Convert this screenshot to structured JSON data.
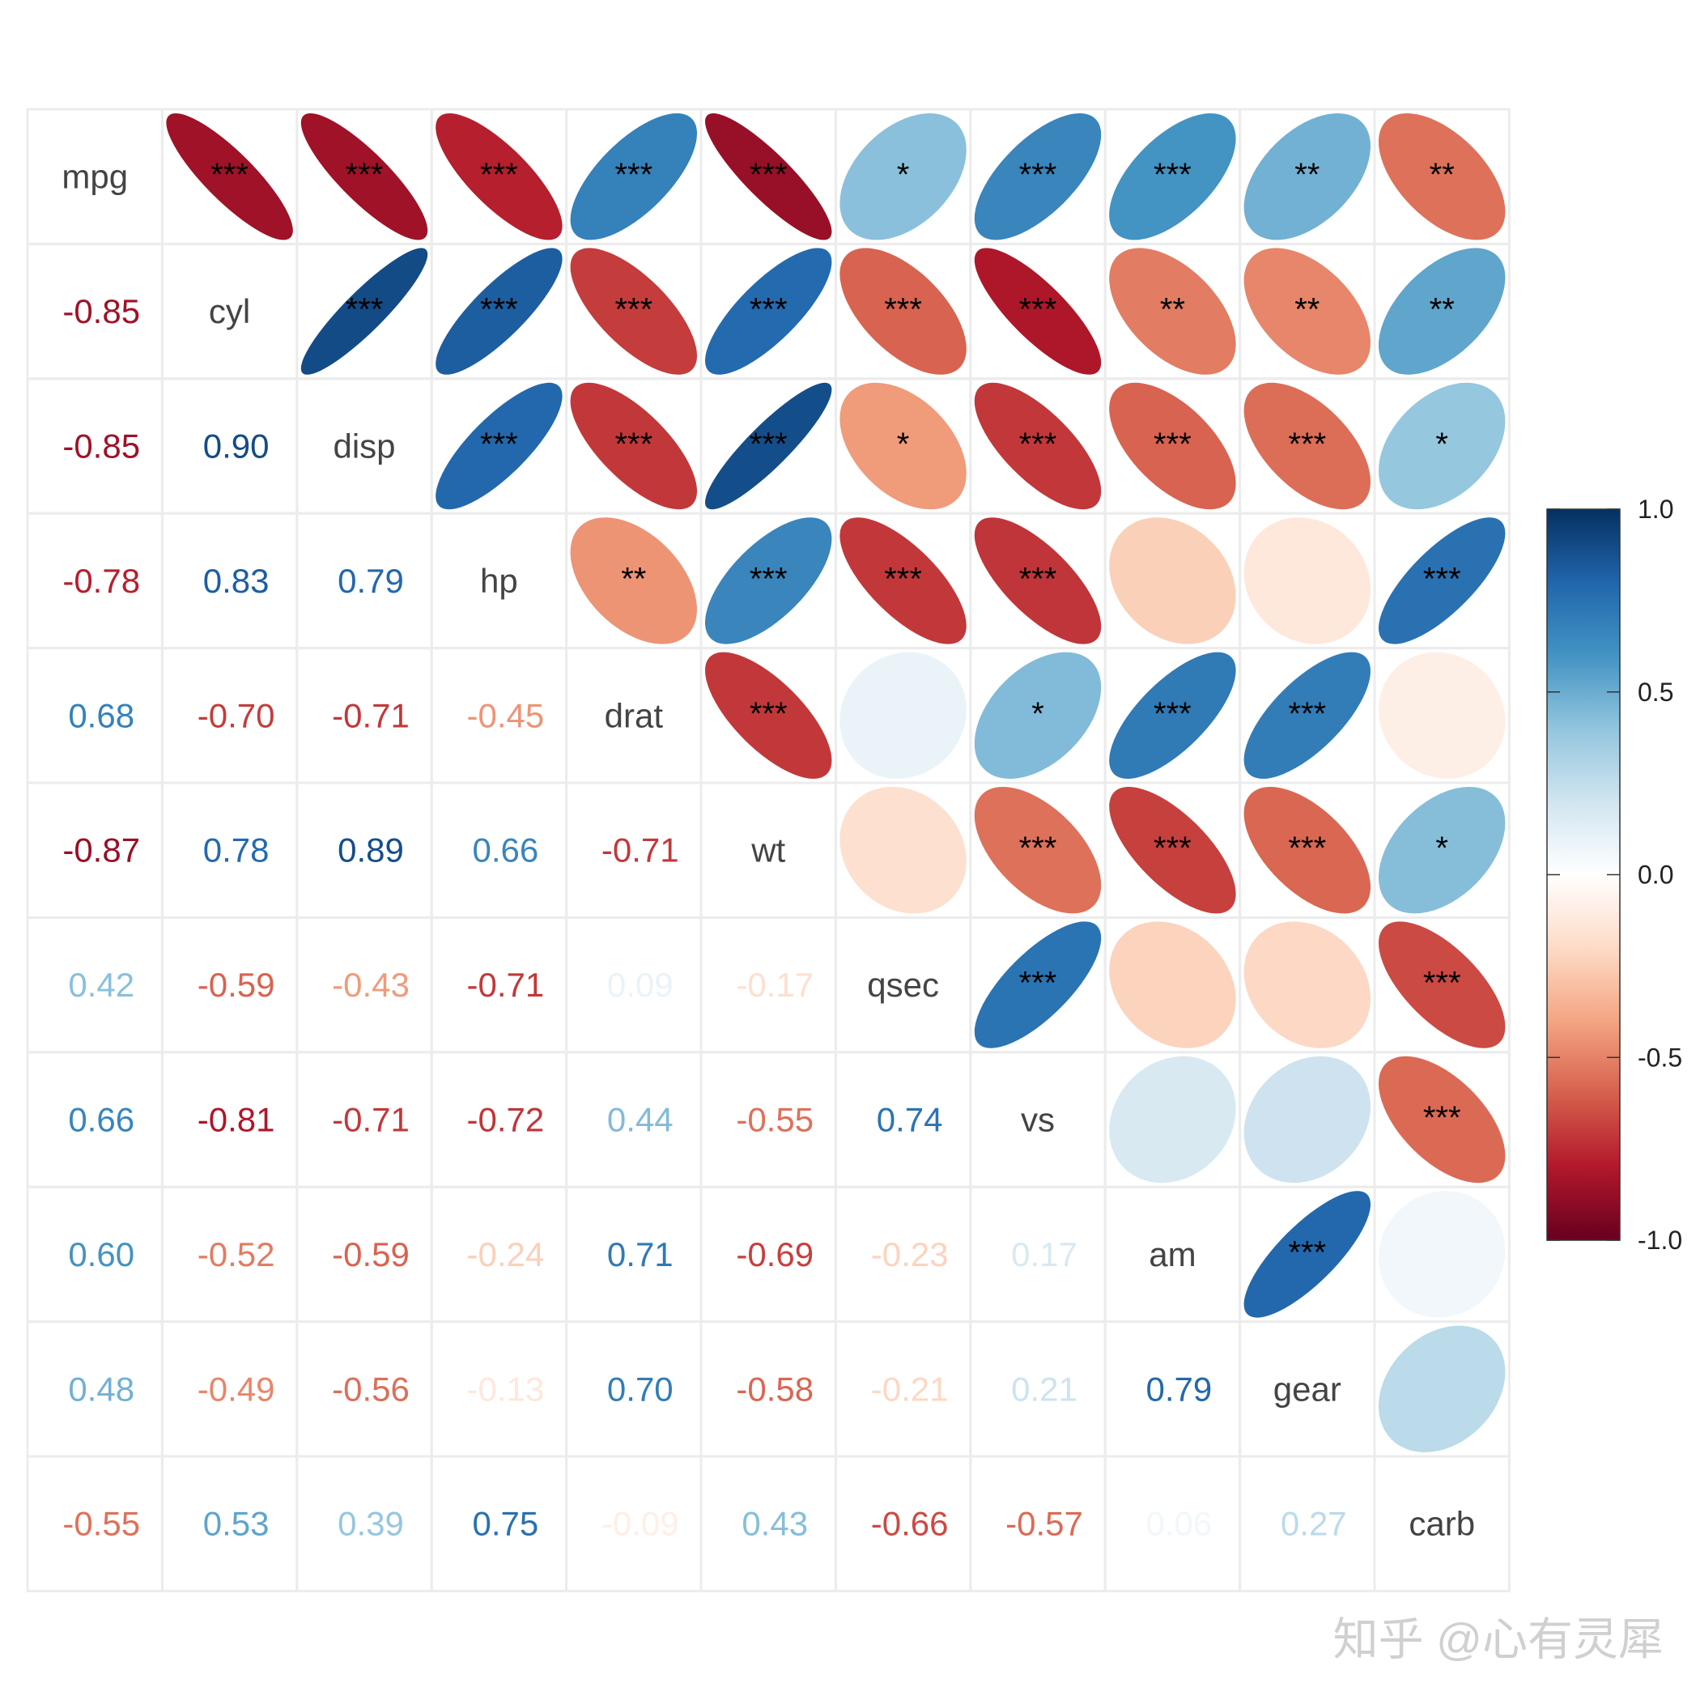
{
  "chart_data": {
    "type": "corrplot",
    "variables": [
      "mpg",
      "cyl",
      "disp",
      "hp",
      "drat",
      "wt",
      "qsec",
      "vs",
      "am",
      "gear",
      "carb"
    ],
    "values": [
      [],
      [
        -0.85
      ],
      [
        -0.85,
        0.9
      ],
      [
        -0.78,
        0.83,
        0.79
      ],
      [
        0.68,
        -0.7,
        -0.71,
        -0.45
      ],
      [
        -0.87,
        0.78,
        0.89,
        0.66,
        -0.71
      ],
      [
        0.42,
        -0.59,
        -0.43,
        -0.71,
        0.09,
        -0.17
      ],
      [
        0.66,
        -0.81,
        -0.71,
        -0.72,
        0.44,
        -0.55,
        0.74
      ],
      [
        0.6,
        -0.52,
        -0.59,
        -0.24,
        0.71,
        -0.69,
        -0.23,
        0.17
      ],
      [
        0.48,
        -0.49,
        -0.56,
        -0.13,
        0.7,
        -0.58,
        -0.21,
        0.21,
        0.79
      ],
      [
        -0.55,
        0.53,
        0.39,
        0.75,
        -0.09,
        0.43,
        -0.66,
        -0.57,
        0.06,
        0.27
      ]
    ],
    "value_labels": [
      [],
      [
        "-0.85"
      ],
      [
        "-0.85",
        "0.90"
      ],
      [
        "-0.78",
        "0.83",
        "0.79"
      ],
      [
        "0.68",
        "-0.70",
        "-0.71",
        "-0.45"
      ],
      [
        "-0.87",
        "0.78",
        "0.89",
        "0.66",
        "-0.71"
      ],
      [
        "0.42",
        "-0.59",
        "-0.43",
        "-0.71",
        "0.09",
        "-0.17"
      ],
      [
        "0.66",
        "-0.81",
        "-0.71",
        "-0.72",
        "0.44",
        "-0.55",
        "0.74"
      ],
      [
        "0.60",
        "-0.52",
        "-0.59",
        "-0.24",
        "0.71",
        "-0.69",
        "-0.23",
        "0.17"
      ],
      [
        "0.48",
        "-0.49",
        "-0.56",
        "-0.13",
        "0.70",
        "-0.58",
        "-0.21",
        "0.21",
        "0.79"
      ],
      [
        "-0.55",
        "0.53",
        "0.39",
        "0.75",
        "-0.09",
        "0.43",
        "-0.66",
        "-0.57",
        "0.06",
        "0.27"
      ]
    ],
    "stars": [
      [
        "***",
        "***",
        "***",
        "***",
        "***",
        "*",
        "***",
        "***",
        "**",
        "**"
      ],
      [
        "***",
        "***",
        "***",
        "***",
        "***",
        "***",
        "**",
        "**",
        "**"
      ],
      [
        "***",
        "***",
        "***",
        "*",
        "***",
        "***",
        "***",
        "*"
      ],
      [
        "**",
        "***",
        "***",
        "***",
        null,
        null,
        "***"
      ],
      [
        "***",
        null,
        "*",
        "***",
        "***",
        null
      ],
      [
        null,
        "***",
        "***",
        "***",
        "*"
      ],
      [
        "***",
        null,
        null,
        "***"
      ],
      [
        null,
        null,
        "***"
      ],
      [
        "***",
        null
      ],
      [
        null
      ]
    ],
    "colors": [
      "#67001F",
      "#B2182B",
      "#D6604D",
      "#F4A582",
      "#FDDBC7",
      "#FFFFFF",
      "#D1E5F0",
      "#92C5DE",
      "#4393C3",
      "#2166AC",
      "#053061"
    ],
    "ylim": [
      -1,
      1
    ],
    "yticks": [
      {
        "value": -1,
        "label": "-1.0"
      },
      {
        "value": -0.5,
        "label": "-0.5"
      },
      {
        "value": 0,
        "label": "0.0"
      },
      {
        "value": 0.5,
        "label": "0.5"
      },
      {
        "value": 1,
        "label": "1.0"
      }
    ],
    "watermark": "知乎 @心有灵犀"
  }
}
